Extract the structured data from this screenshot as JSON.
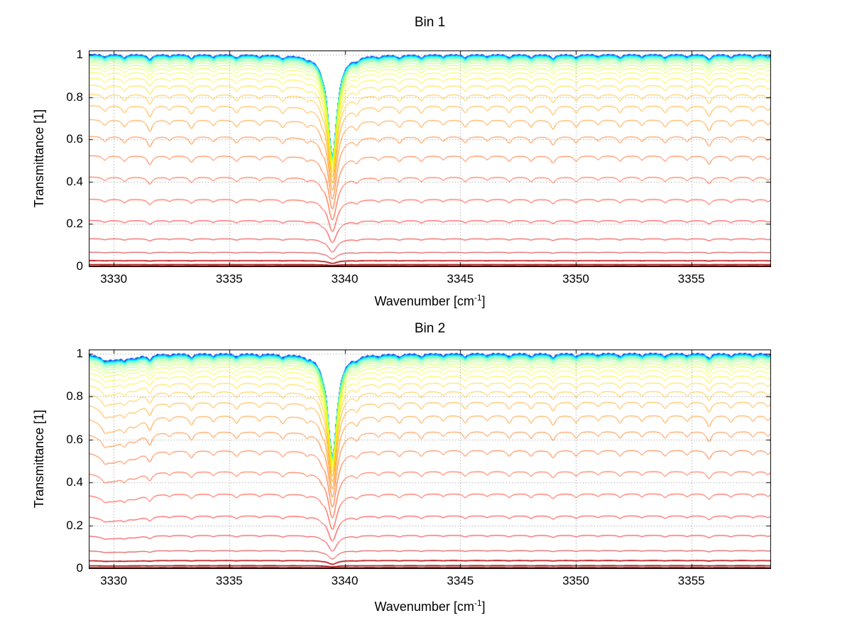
{
  "panels": [
    {
      "title": "Bin 1",
      "ylabel": "Transmittance [1]",
      "xlabel": {
        "prefix": "Wavenumber [cm",
        "sup": "-1",
        "suffix": "]"
      }
    },
    {
      "title": "Bin 2",
      "ylabel": "Transmittance [1]",
      "xlabel": {
        "prefix": "Wavenumber [cm",
        "sup": "-1",
        "suffix": "]"
      }
    }
  ],
  "chart_data": [
    {
      "type": "line",
      "title": "Bin 1",
      "xlabel": "Wavenumber [cm^-1]",
      "ylabel": "Transmittance [1]",
      "xlim": [
        3328.92,
        3358.42
      ],
      "ylim": [
        0,
        1.02
      ],
      "x_ticks": [
        3330,
        3335,
        3340,
        3345,
        3350,
        3355
      ],
      "x_tick_labels": [
        "3330",
        "3335",
        "3340",
        "3345",
        "3350",
        "3355"
      ],
      "y_ticks": [
        0,
        0.2,
        0.4,
        0.6,
        0.8,
        1
      ],
      "y_tick_labels": [
        "0",
        "0.2",
        "0.4",
        "0.6",
        "0.8",
        "1"
      ],
      "grid": true,
      "axis_color": "#000000",
      "colormap_stops": [
        [
          0,
          0,
          0,
          143
        ],
        [
          0.125,
          0,
          0,
          255
        ],
        [
          0.375,
          0,
          255,
          255
        ],
        [
          0.625,
          255,
          255,
          0
        ],
        [
          0.875,
          255,
          0,
          0
        ],
        [
          1,
          128,
          0,
          0
        ]
      ],
      "optical_depths": [
        0.0001,
        0.00013,
        0.00017,
        0.00022,
        0.0003,
        0.0004,
        0.00055,
        0.0007,
        0.0009,
        0.0012,
        0.0016,
        0.0021,
        0.0028,
        0.0037,
        0.005,
        0.0066,
        0.0088,
        0.0117,
        0.0156,
        0.0208,
        0.0277,
        0.0369,
        0.0491,
        0.0654,
        0.0871,
        0.116,
        0.155,
        0.206,
        0.274,
        0.365,
        0.486,
        0.647,
        0.861,
        1.147,
        1.527,
        2.033,
        2.707,
        3.604,
        4.8,
        6.39
      ],
      "absorption_lines": [
        [
          3329.6,
          0.04,
          0.12,
          1
        ],
        [
          3330.45,
          0.05,
          0.12,
          1
        ],
        [
          3331.55,
          0.08,
          0.13,
          1
        ],
        [
          3332.4,
          0.03,
          0.1,
          1
        ],
        [
          3333.35,
          0.06,
          0.12,
          1
        ],
        [
          3334.3,
          0.04,
          0.11,
          1
        ],
        [
          3335.3,
          0.05,
          0.12,
          1
        ],
        [
          3336.3,
          0.035,
          0.11,
          1
        ],
        [
          3337.3,
          0.05,
          0.12,
          1
        ],
        [
          3338.35,
          0.03,
          0.1,
          1
        ],
        [
          3339.0,
          0.04,
          0.1,
          1
        ],
        [
          3339.45,
          0.48,
          0.24,
          0
        ],
        [
          3340.5,
          0.05,
          0.12,
          1
        ],
        [
          3341.45,
          0.035,
          0.11,
          1
        ],
        [
          3342.35,
          0.05,
          0.12,
          1
        ],
        [
          3343.3,
          0.05,
          0.12,
          1
        ],
        [
          3344.25,
          0.035,
          0.11,
          1
        ],
        [
          3345.2,
          0.05,
          0.12,
          1
        ],
        [
          3346.15,
          0.035,
          0.11,
          1
        ],
        [
          3347.1,
          0.05,
          0.12,
          1
        ],
        [
          3348.05,
          0.05,
          0.12,
          1
        ],
        [
          3349.0,
          0.065,
          0.13,
          1
        ],
        [
          3350.0,
          0.05,
          0.12,
          1
        ],
        [
          3350.95,
          0.035,
          0.11,
          1
        ],
        [
          3351.9,
          0.05,
          0.12,
          1
        ],
        [
          3352.85,
          0.04,
          0.11,
          1
        ],
        [
          3353.85,
          0.05,
          0.12,
          1
        ],
        [
          3354.8,
          0.04,
          0.11,
          1
        ],
        [
          3355.75,
          0.075,
          0.13,
          1
        ],
        [
          3356.7,
          0.045,
          0.12,
          1
        ],
        [
          3357.65,
          0.04,
          0.11,
          1
        ],
        [
          3358.3,
          0.035,
          0.11,
          1
        ]
      ],
      "noise_amp_top": 0.0035,
      "noise_amp_rel": 0.0012,
      "seed": 1.3
    },
    {
      "type": "line",
      "title": "Bin 2",
      "xlabel": "Wavenumber [cm^-1]",
      "ylabel": "Transmittance [1]",
      "xlim": [
        3328.92,
        3358.42
      ],
      "ylim": [
        0,
        1.02
      ],
      "x_ticks": [
        3330,
        3335,
        3340,
        3345,
        3350,
        3355
      ],
      "x_tick_labels": [
        "3330",
        "3335",
        "3340",
        "3345",
        "3350",
        "3355"
      ],
      "y_ticks": [
        0,
        0.2,
        0.4,
        0.6,
        0.8,
        1
      ],
      "y_tick_labels": [
        "0",
        "0.2",
        "0.4",
        "0.6",
        "0.8",
        "1"
      ],
      "grid": true,
      "axis_color": "#000000",
      "colormap_stops": [
        [
          0,
          0,
          0,
          143
        ],
        [
          0.125,
          0,
          0,
          255
        ],
        [
          0.375,
          0,
          255,
          255
        ],
        [
          0.625,
          255,
          255,
          0
        ],
        [
          0.875,
          255,
          0,
          0
        ],
        [
          1,
          128,
          0,
          0
        ]
      ],
      "optical_depths": [
        9e-05,
        0.00012,
        0.00016,
        0.0002,
        0.00028,
        0.00037,
        0.0005,
        0.00065,
        0.00083,
        0.0011,
        0.0015,
        0.0019,
        0.0026,
        0.0034,
        0.0046,
        0.0061,
        0.0081,
        0.0108,
        0.0144,
        0.0191,
        0.0255,
        0.034,
        0.0452,
        0.0602,
        0.0801,
        0.107,
        0.143,
        0.19,
        0.252,
        0.336,
        0.447,
        0.595,
        0.792,
        1.055,
        1.405,
        1.87,
        2.49,
        3.32,
        4.42,
        5.88
      ],
      "absorption_lines": [
        [
          3329.9,
          0.1,
          0.6,
          1
        ],
        [
          3330.9,
          0.05,
          0.3,
          1
        ],
        [
          3329.6,
          0.04,
          0.12,
          1
        ],
        [
          3330.45,
          0.05,
          0.12,
          1
        ],
        [
          3331.55,
          0.08,
          0.13,
          1
        ],
        [
          3332.4,
          0.03,
          0.1,
          1
        ],
        [
          3333.35,
          0.06,
          0.12,
          1
        ],
        [
          3334.3,
          0.04,
          0.11,
          1
        ],
        [
          3335.3,
          0.05,
          0.12,
          1
        ],
        [
          3336.3,
          0.035,
          0.11,
          1
        ],
        [
          3337.3,
          0.05,
          0.12,
          1
        ],
        [
          3338.35,
          0.03,
          0.1,
          1
        ],
        [
          3339.0,
          0.04,
          0.1,
          1
        ],
        [
          3339.45,
          0.48,
          0.24,
          0
        ],
        [
          3340.5,
          0.05,
          0.12,
          1
        ],
        [
          3341.45,
          0.035,
          0.11,
          1
        ],
        [
          3342.35,
          0.05,
          0.12,
          1
        ],
        [
          3343.3,
          0.05,
          0.12,
          1
        ],
        [
          3344.25,
          0.035,
          0.11,
          1
        ],
        [
          3345.2,
          0.05,
          0.12,
          1
        ],
        [
          3346.15,
          0.035,
          0.11,
          1
        ],
        [
          3347.1,
          0.05,
          0.12,
          1
        ],
        [
          3348.05,
          0.05,
          0.12,
          1
        ],
        [
          3349.0,
          0.065,
          0.13,
          1
        ],
        [
          3350.0,
          0.05,
          0.12,
          1
        ],
        [
          3350.95,
          0.035,
          0.11,
          1
        ],
        [
          3351.9,
          0.05,
          0.12,
          1
        ],
        [
          3352.85,
          0.04,
          0.11,
          1
        ],
        [
          3353.85,
          0.05,
          0.12,
          1
        ],
        [
          3354.8,
          0.04,
          0.11,
          1
        ],
        [
          3355.75,
          0.075,
          0.13,
          1
        ],
        [
          3356.7,
          0.045,
          0.12,
          1
        ],
        [
          3357.65,
          0.04,
          0.11,
          1
        ],
        [
          3358.3,
          0.035,
          0.11,
          1
        ]
      ],
      "noise_amp_top": 0.005,
      "noise_amp_rel": 0.0012,
      "seed": 4.2
    }
  ]
}
